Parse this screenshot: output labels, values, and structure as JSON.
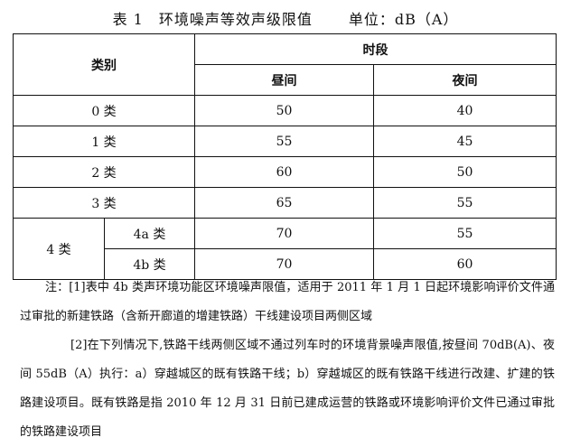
{
  "title": {
    "caption": "表 1　环境噪声等效声级限值",
    "unit": "单位：dB（A）"
  },
  "table": {
    "header": {
      "category": "类别",
      "period": "时段",
      "day": "昼间",
      "night": "夜间"
    },
    "rows": [
      {
        "category": "0 类",
        "day": "50",
        "night": "40"
      },
      {
        "category": "1 类",
        "day": "55",
        "night": "45"
      },
      {
        "category": "2 类",
        "day": "60",
        "night": "50"
      },
      {
        "category": "3 类",
        "day": "65",
        "night": "55"
      }
    ],
    "class4": {
      "label": "4 类",
      "sub": [
        {
          "category": "4a 类",
          "day": "70",
          "night": "55"
        },
        {
          "category": "4b 类",
          "day": "70",
          "night": "60"
        }
      ]
    }
  },
  "notes": [
    "注：[1]表中 4b 类声环境功能区环境噪声限值，适用于 2011 年 1 月 1 日起环境影响评价文件通过审批的新建铁路（含新开廊道的增建铁路）干线建设项目两侧区域",
    "[2]在下列情况下,铁路干线两侧区域不通过列车时的环境背景噪声限值,按昼间 70dB(A)、夜间 55dB（A）执行：a）穿越城区的既有铁路干线；b）穿越城区的既有铁路干线进行改建、扩建的铁路建设项目。既有铁路是指 2010 年 12 月 31 日前已建成运营的铁路或环境影响评价文件已通过审批的铁路建设项目"
  ]
}
